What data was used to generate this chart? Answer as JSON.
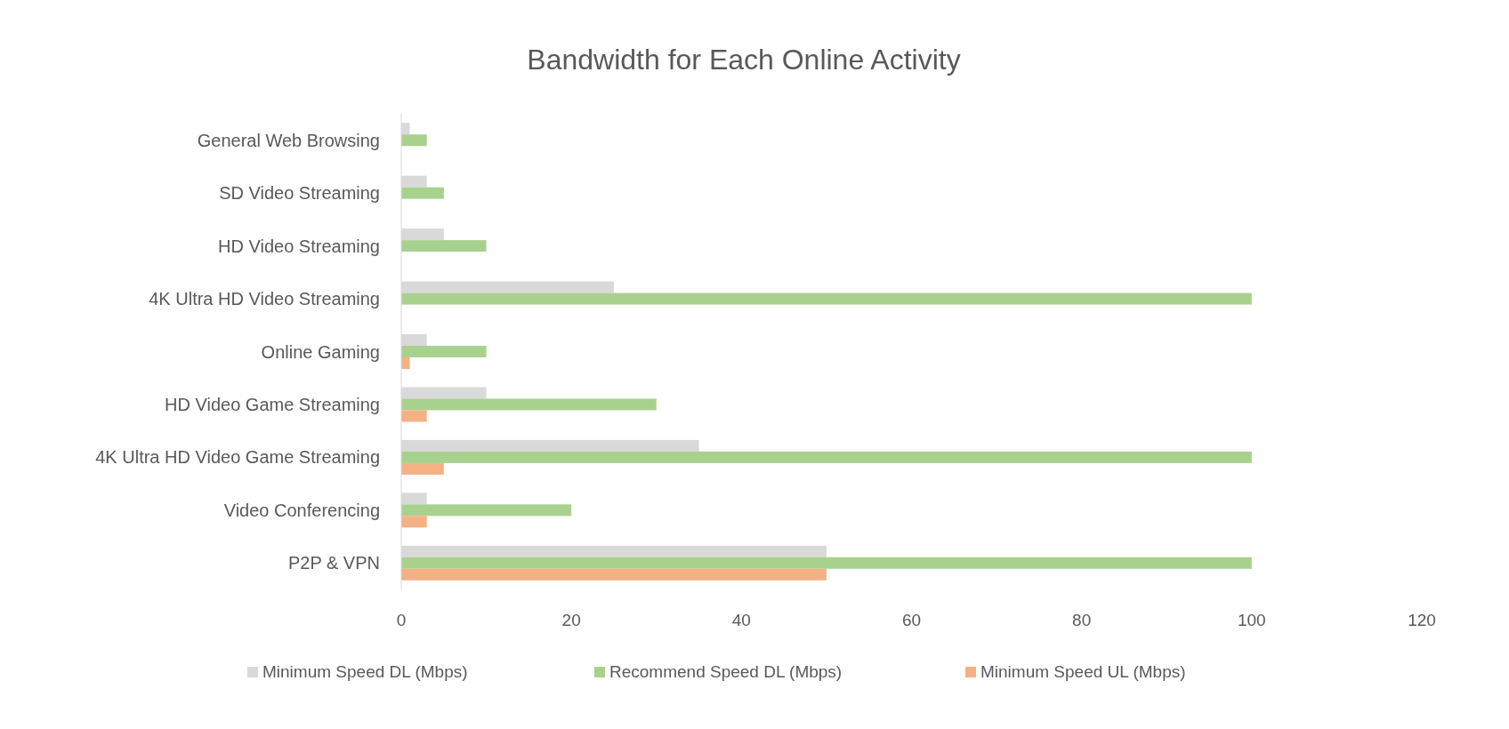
{
  "chart_data": {
    "type": "bar",
    "orientation": "horizontal",
    "title": "Bandwidth for Each Online Activity",
    "categories": [
      "General Web Browsing",
      "SD Video Streaming",
      "HD Video Streaming",
      "4K Ultra HD Video Streaming",
      "Online Gaming",
      "HD Video Game Streaming",
      "4K Ultra HD Video Game Streaming",
      "Video Conferencing",
      "P2P & VPN"
    ],
    "series": [
      {
        "name": "Minimum Speed DL (Mbps)",
        "color": "#d9d9d9",
        "values": [
          1,
          3,
          5,
          25,
          3,
          10,
          35,
          3,
          50
        ]
      },
      {
        "name": "Recommend Speed DL (Mbps)",
        "color": "#a9d18e",
        "values": [
          3,
          5,
          10,
          100,
          10,
          30,
          100,
          20,
          100
        ]
      },
      {
        "name": "Minimum Speed UL (Mbps)",
        "color": "#f4b183",
        "values": [
          null,
          null,
          null,
          null,
          1,
          3,
          5,
          3,
          50
        ]
      }
    ],
    "xlim": [
      0,
      120
    ],
    "xticks": [
      0,
      20,
      40,
      60,
      80,
      100,
      120
    ],
    "grid": false,
    "legend": "bottom"
  }
}
